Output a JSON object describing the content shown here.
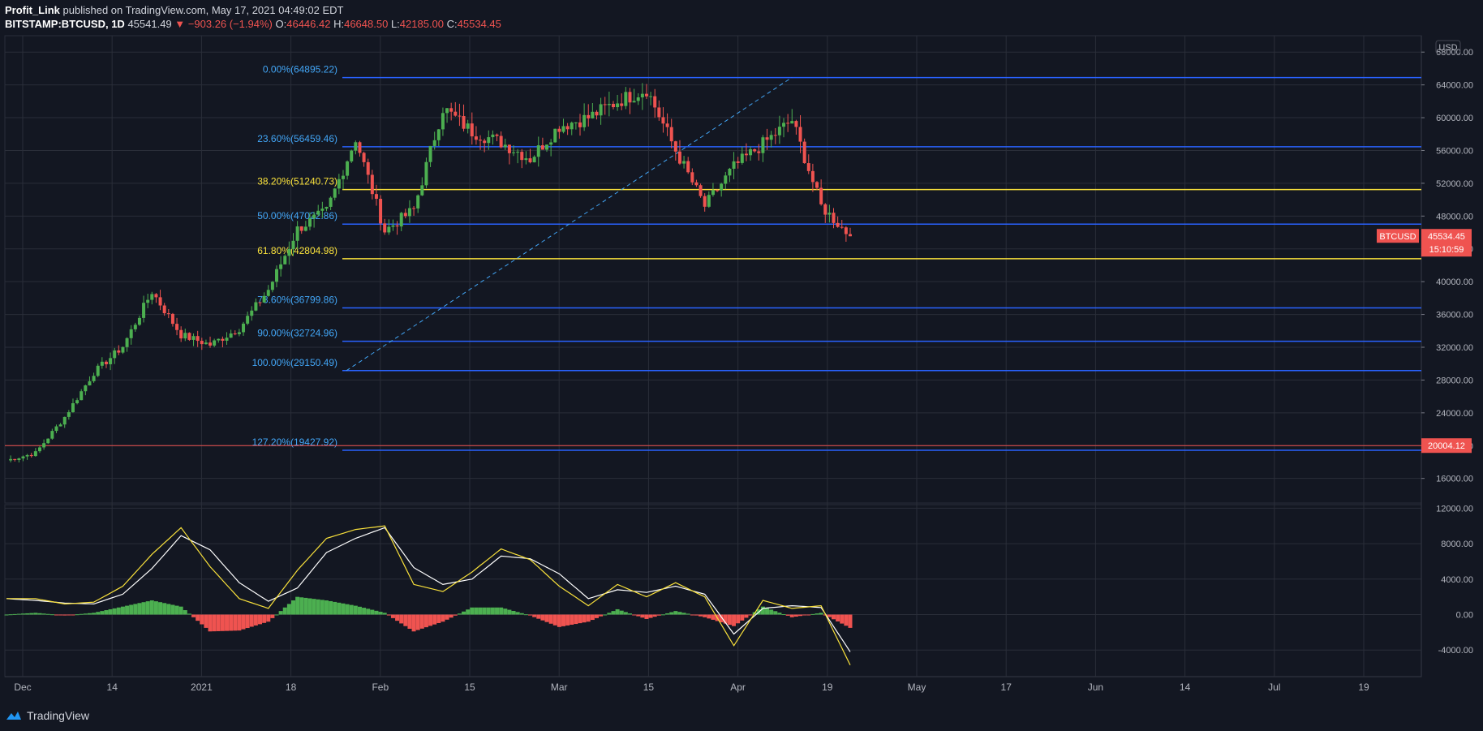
{
  "header": {
    "author": "Profit_Link",
    "published_text": "published on TradingView.com, May 17, 2021 04:49:02 EDT",
    "symbol": "BITSTAMP:BTCUSD, 1D",
    "last": "45541.49",
    "change": "−903.26 (−1.94%)",
    "o_label": "O:",
    "o": "46446.42",
    "h_label": "H:",
    "h": "46648.50",
    "l_label": "L:",
    "l": "42185.00",
    "c_label": "C:",
    "c": "45534.45"
  },
  "footer": {
    "brand": "TradingView"
  },
  "colors": {
    "background": "#131722",
    "grid": "#2a2e39",
    "up": "#26a69a",
    "candle_up": "#4caf50",
    "down": "#ef5350",
    "fib_blue": "#2962ff",
    "fib_blue_text": "#42a5f5",
    "fib_yellow": "#f9e13b",
    "macd": "#ffffff",
    "signal": "#f9e13b"
  },
  "chart_data": [
    {
      "type": "candlestick",
      "title": "BITSTAMP:BTCUSD, 1D",
      "currency_label": "USD",
      "ylim": [
        13000,
        70000
      ],
      "y_ticks": [
        "68000.00",
        "64000.00",
        "60000.00",
        "56000.00",
        "52000.00",
        "48000.00",
        "44000.00",
        "40000.00",
        "36000.00",
        "32000.00",
        "28000.00",
        "24000.00",
        "20000.00",
        "16000.00"
      ],
      "x_tick_labels": [
        "Dec",
        "14",
        "2021",
        "18",
        "Feb",
        "15",
        "Mar",
        "15",
        "Apr",
        "19",
        "May",
        "17",
        "Jun",
        "14",
        "Jul",
        "19"
      ],
      "weekly_close": [
        18200,
        19100,
        23500,
        28900,
        32100,
        38800,
        33500,
        32300,
        34300,
        39000,
        46400,
        48600,
        57500,
        46200,
        48800,
        61200,
        58300,
        57000,
        55000,
        59000,
        60000,
        62000,
        63500,
        56000,
        49200,
        54000,
        56800,
        59700,
        49200,
        45534
      ],
      "fib_levels": [
        {
          "label": "0.00%(64895.22)",
          "value": 64895.22,
          "color": "blue"
        },
        {
          "label": "23.60%(56459.46)",
          "value": 56459.46,
          "color": "blue"
        },
        {
          "label": "38.20%(51240.73)",
          "value": 51240.73,
          "color": "yellow"
        },
        {
          "label": "50.00%(47022.86)",
          "value": 47022.86,
          "color": "blue"
        },
        {
          "label": "61.80%(42804.98)",
          "value": 42804.98,
          "color": "yellow"
        },
        {
          "label": "78.60%(36799.86)",
          "value": 36799.86,
          "color": "blue"
        },
        {
          "label": "90.00%(32724.96)",
          "value": 32724.96,
          "color": "blue"
        },
        {
          "label": "100.00%(29150.49)",
          "value": 29150.49,
          "color": "blue"
        },
        {
          "label": "127.20%(19427.92)",
          "value": 19427.92,
          "color": "blue"
        }
      ],
      "horizontal_line": {
        "value": 20004.12,
        "label": "20004.12"
      },
      "price_tag": {
        "symbol": "BTCUSD",
        "price": "45534.45",
        "countdown": "15:10:59",
        "value": 45534.45
      },
      "trend_line": {
        "from": 29150,
        "to": 64895
      }
    },
    {
      "type": "macd",
      "ylim": [
        -7000,
        12400
      ],
      "y_ticks": [
        "12000.00",
        "8000.00",
        "4000.00",
        "0.00",
        "-4000.00"
      ],
      "macd_weekly": [
        1800,
        1800,
        1200,
        1400,
        3200,
        6800,
        9800,
        5400,
        1800,
        700,
        5000,
        8600,
        9600,
        10000,
        3400,
        2600,
        4800,
        7400,
        6200,
        3200,
        1000,
        3400,
        2000,
        3600,
        2000,
        -3500,
        1600,
        700,
        1000,
        -5700
      ],
      "signal_weekly": [
        1800,
        1600,
        1300,
        1200,
        2300,
        5200,
        8900,
        7300,
        3600,
        1500,
        3000,
        7000,
        8600,
        9800,
        5300,
        3400,
        4000,
        6600,
        6300,
        4600,
        1800,
        2800,
        2500,
        3200,
        2300,
        -2200,
        700,
        1000,
        800,
        -4200
      ]
    }
  ]
}
